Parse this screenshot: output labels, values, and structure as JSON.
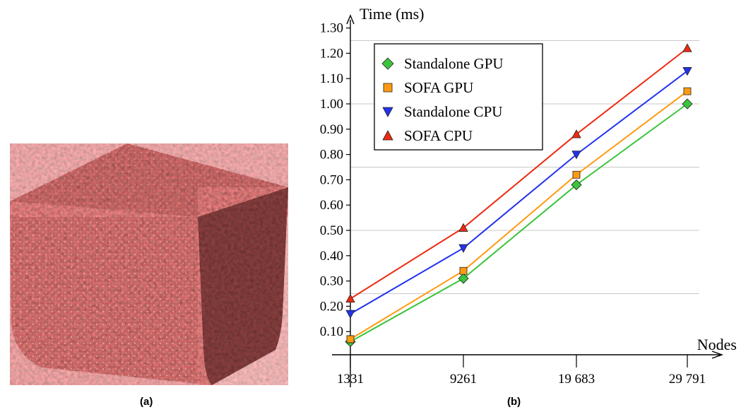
{
  "captions": {
    "left": "(a)",
    "right": "(b)"
  },
  "chart_data": {
    "type": "line",
    "title": "",
    "xlabel": "Nodes",
    "ylabel": "Time (ms)",
    "categories": [
      "1331",
      "9261",
      "19 683",
      "29 791"
    ],
    "x_tick_labels": [
      "1331",
      "9261",
      "19 683",
      "29 791"
    ],
    "y_tick_labels": [
      "0.10",
      "0.20",
      "0.30",
      "0.40",
      "0.50",
      "0.60",
      "0.70",
      "0.80",
      "0.90",
      "1.00",
      "1.10",
      "1.20",
      "1.30"
    ],
    "ylim": [
      0,
      1.3
    ],
    "grid": "horizontal",
    "legend_position": "top-left",
    "series": [
      {
        "name": "Standalone GPU",
        "marker": "diamond",
        "color": "#3cc43c",
        "values": [
          0.06,
          0.31,
          0.68,
          1.0
        ]
      },
      {
        "name": "SOFA GPU",
        "marker": "square",
        "color": "#ff9a10",
        "values": [
          0.07,
          0.34,
          0.72,
          1.05
        ]
      },
      {
        "name": "Standalone CPU",
        "marker": "triangle-down",
        "color": "#2233ee",
        "values": [
          0.17,
          0.43,
          0.8,
          1.13
        ]
      },
      {
        "name": "SOFA CPU",
        "marker": "triangle-up",
        "color": "#ee2a10",
        "values": [
          0.23,
          0.51,
          0.88,
          1.22
        ]
      }
    ]
  }
}
